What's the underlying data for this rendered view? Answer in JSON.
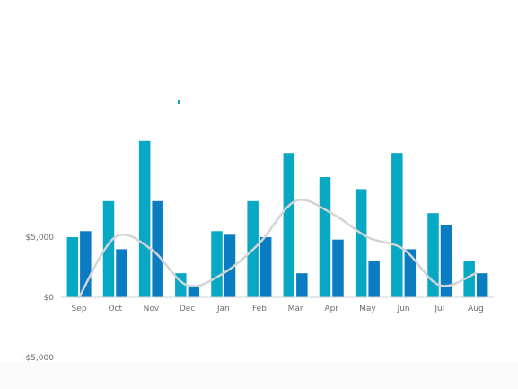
{
  "chart_data": {
    "type": "bar",
    "categories": [
      "Sep",
      "Oct",
      "Nov",
      "Dec",
      "Jan",
      "Feb",
      "Mar",
      "Apr",
      "May",
      "Jun",
      "Jul",
      "Aug"
    ],
    "series": [
      {
        "type": "bar",
        "color": "#06a8c4",
        "values": [
          5000,
          8000,
          13000,
          2000,
          5500,
          8000,
          12000,
          10000,
          9000,
          12000,
          7000,
          3000
        ]
      },
      {
        "type": "bar",
        "color": "#0a7cc2",
        "values": [
          5500,
          4000,
          8000,
          1000,
          5200,
          5000,
          2000,
          4800,
          3000,
          4000,
          6000,
          2000
        ]
      },
      {
        "type": "line",
        "color": "#c0504d",
        "values": [
          0,
          5000,
          4000,
          1000,
          2000,
          4500,
          8000,
          7000,
          5000,
          4000,
          1000,
          2000
        ]
      },
      {
        "type": "line",
        "color": "#d4d4d4",
        "values": [
          0,
          5000,
          4000,
          1000,
          2000,
          4500,
          8000,
          7000,
          5000,
          4000,
          1000,
          2000
        ]
      }
    ],
    "y_ticks": [
      {
        "value": 5000,
        "label": "$5,000"
      },
      {
        "value": 0,
        "label": "$0"
      },
      {
        "value": -5000,
        "label": "-$5,000"
      }
    ],
    "ylim": [
      -5000,
      15000
    ],
    "grid": false,
    "legend": "top"
  }
}
